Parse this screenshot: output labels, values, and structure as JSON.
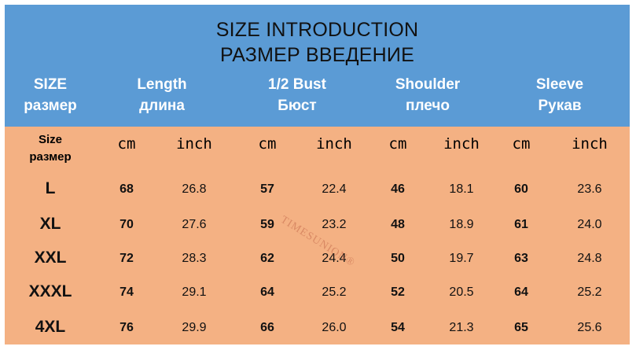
{
  "header": {
    "title_en": "SIZE INTRODUCTION",
    "title_ru": "РАЗМЕР ВВЕДЕНИЕ",
    "columns": [
      {
        "en": "SIZE",
        "ru": "размер"
      },
      {
        "en": "Length",
        "ru": "длина"
      },
      {
        "en": "1/2 Bust",
        "ru": "Бюст"
      },
      {
        "en": "Shoulder",
        "ru": "плечо"
      },
      {
        "en": "Sleeve",
        "ru": "Рукав"
      }
    ]
  },
  "subheader": {
    "size_en": "Size",
    "size_ru": "размер",
    "cm": "cm",
    "inch": "inch"
  },
  "rows": [
    {
      "size": "L",
      "length_cm": "68",
      "length_in": "26.8",
      "bust_cm": "57",
      "bust_in": "22.4",
      "shoulder_cm": "46",
      "shoulder_in": "18.1",
      "sleeve_cm": "60",
      "sleeve_in": "23.6"
    },
    {
      "size": "XL",
      "length_cm": "70",
      "length_in": "27.6",
      "bust_cm": "59",
      "bust_in": "23.2",
      "shoulder_cm": "48",
      "shoulder_in": "18.9",
      "sleeve_cm": "61",
      "sleeve_in": "24.0"
    },
    {
      "size": "XXL",
      "length_cm": "72",
      "length_in": "28.3",
      "bust_cm": "62",
      "bust_in": "24.4",
      "shoulder_cm": "50",
      "shoulder_in": "19.7",
      "sleeve_cm": "63",
      "sleeve_in": "24.8"
    },
    {
      "size": "XXXL",
      "length_cm": "74",
      "length_in": "29.1",
      "bust_cm": "64",
      "bust_in": "25.2",
      "shoulder_cm": "52",
      "shoulder_in": "20.5",
      "sleeve_cm": "64",
      "sleeve_in": "25.2"
    },
    {
      "size": "4XL",
      "length_cm": "76",
      "length_in": "29.9",
      "bust_cm": "66",
      "bust_in": "26.0",
      "shoulder_cm": "54",
      "shoulder_in": "21.3",
      "sleeve_cm": "65",
      "sleeve_in": "25.6"
    }
  ],
  "watermark": "TIMESUNION®",
  "colors": {
    "header_bg": "#5b9bd5",
    "body_bg": "#f4b183",
    "header_text": "#ffffff"
  }
}
